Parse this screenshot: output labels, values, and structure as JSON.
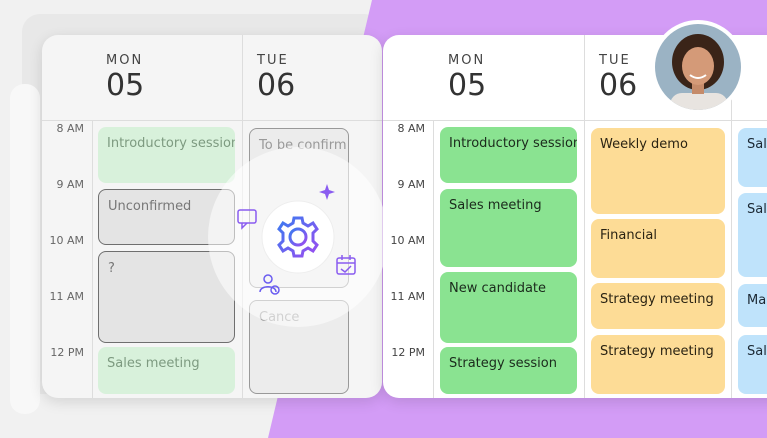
{
  "left_calendar": {
    "times": [
      "8 AM",
      "9 AM",
      "10 AM",
      "11 AM",
      "12 PM"
    ],
    "days": [
      {
        "weekday": "MON",
        "date": "05",
        "events": [
          "Introductory session",
          "Unconfirmed",
          "?",
          "Sales meeting"
        ]
      },
      {
        "weekday": "TUE",
        "date": "06",
        "events": [
          "To be confirm",
          "Cance"
        ]
      }
    ]
  },
  "right_calendar": {
    "times": [
      "8 AM",
      "9 AM",
      "10 AM",
      "11 AM",
      "12 PM"
    ],
    "days": [
      {
        "weekday": "MON",
        "date": "05",
        "events": [
          "Introductory session",
          "Sales meeting",
          "New candidate",
          "Strategy session"
        ]
      },
      {
        "weekday": "TUE",
        "date": "06",
        "events": [
          "Weekly demo",
          "Financial",
          "Strategy meeting",
          "Strategy meeting"
        ]
      },
      {
        "events": [
          "Sale",
          "Sale",
          "Ma",
          "Sale"
        ]
      }
    ]
  }
}
